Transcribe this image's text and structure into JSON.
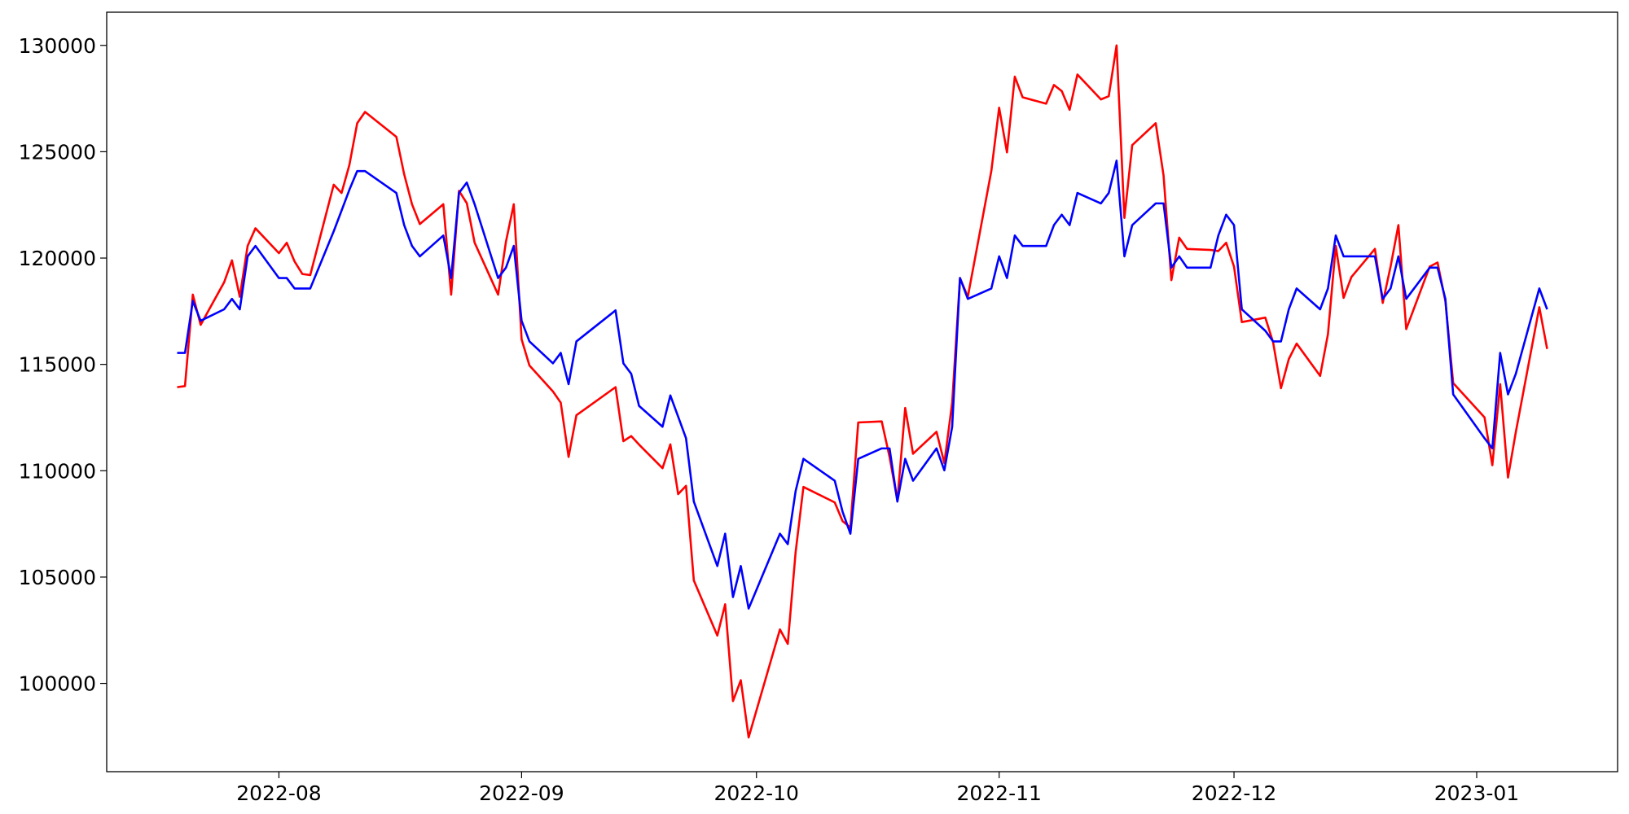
{
  "chart_data": {
    "type": "line",
    "x": [
      "2022-07-19",
      "2022-07-20",
      "2022-07-21",
      "2022-07-22",
      "2022-07-25",
      "2022-07-26",
      "2022-07-27",
      "2022-07-28",
      "2022-07-29",
      "2022-08-01",
      "2022-08-02",
      "2022-08-03",
      "2022-08-04",
      "2022-08-05",
      "2022-08-08",
      "2022-08-09",
      "2022-08-10",
      "2022-08-11",
      "2022-08-12",
      "2022-08-16",
      "2022-08-17",
      "2022-08-18",
      "2022-08-19",
      "2022-08-22",
      "2022-08-23",
      "2022-08-24",
      "2022-08-25",
      "2022-08-26",
      "2022-08-29",
      "2022-08-30",
      "2022-08-31",
      "2022-09-01",
      "2022-09-02",
      "2022-09-05",
      "2022-09-06",
      "2022-09-07",
      "2022-09-08",
      "2022-09-13",
      "2022-09-14",
      "2022-09-15",
      "2022-09-16",
      "2022-09-19",
      "2022-09-20",
      "2022-09-21",
      "2022-09-22",
      "2022-09-23",
      "2022-09-26",
      "2022-09-27",
      "2022-09-28",
      "2022-09-29",
      "2022-09-30",
      "2022-10-04",
      "2022-10-05",
      "2022-10-06",
      "2022-10-07",
      "2022-10-11",
      "2022-10-12",
      "2022-10-13",
      "2022-10-14",
      "2022-10-17",
      "2022-10-18",
      "2022-10-19",
      "2022-10-20",
      "2022-10-21",
      "2022-10-24",
      "2022-10-25",
      "2022-10-26",
      "2022-10-27",
      "2022-10-28",
      "2022-10-31",
      "2022-11-01",
      "2022-11-02",
      "2022-11-03",
      "2022-11-04",
      "2022-11-07",
      "2022-11-08",
      "2022-11-09",
      "2022-11-10",
      "2022-11-11",
      "2022-11-14",
      "2022-11-15",
      "2022-11-16",
      "2022-11-17",
      "2022-11-18",
      "2022-11-21",
      "2022-11-22",
      "2022-11-23",
      "2022-11-24",
      "2022-11-25",
      "2022-11-28",
      "2022-11-29",
      "2022-11-30",
      "2022-12-01",
      "2022-12-02",
      "2022-12-05",
      "2022-12-06",
      "2022-12-07",
      "2022-12-08",
      "2022-12-09",
      "2022-12-12",
      "2022-12-13",
      "2022-12-14",
      "2022-12-15",
      "2022-12-16",
      "2022-12-19",
      "2022-12-20",
      "2022-12-21",
      "2022-12-22",
      "2022-12-23",
      "2022-12-26",
      "2022-12-27",
      "2022-12-28",
      "2022-12-29",
      "2023-01-02",
      "2023-01-03",
      "2023-01-04",
      "2023-01-05",
      "2023-01-06",
      "2023-01-09",
      "2023-01-10"
    ],
    "series": [
      {
        "color": "#ff0000",
        "values": [
          113930,
          113980,
          118280,
          116860,
          118860,
          119890,
          118180,
          120570,
          121400,
          120230,
          120720,
          119840,
          119250,
          119200,
          123450,
          123060,
          124380,
          126340,
          126870,
          125700,
          123940,
          122530,
          121600,
          122530,
          118280,
          123160,
          122580,
          120720,
          118280,
          120770,
          122530,
          116180,
          114950,
          113730,
          113200,
          110650,
          112610,
          113930,
          111390,
          111630,
          111230,
          110120,
          111240,
          108900,
          109290,
          104840,
          102250,
          103720,
          99170,
          100150,
          97460,
          102540,
          101860,
          106160,
          109240,
          108510,
          107630,
          107330,
          112270,
          112320,
          110650,
          108600,
          112950,
          110800,
          111830,
          110360,
          113200,
          119060,
          118180,
          124090,
          127070,
          124970,
          128530,
          127560,
          127260,
          128140,
          127850,
          126970,
          128630,
          127460,
          127610,
          130000,
          121890,
          125310,
          126340,
          123890,
          118960,
          120960,
          120430,
          120380,
          120330,
          120720,
          119600,
          116990,
          117200,
          116030,
          113880,
          115250,
          115980,
          114460,
          116420,
          120570,
          118130,
          119110,
          120430,
          117890,
          119600,
          121550,
          116660,
          119600,
          119790,
          117980,
          114120,
          112510,
          110260,
          114070,
          109680,
          111820,
          117690,
          115730
        ]
      },
      {
        "color": "#0000ff",
        "values": [
          115540,
          115540,
          117980,
          117050,
          117590,
          118080,
          117590,
          120080,
          120570,
          119060,
          119060,
          118570,
          118570,
          118570,
          121260,
          122230,
          123210,
          124090,
          124090,
          123060,
          121550,
          120570,
          120080,
          121060,
          119060,
          123060,
          123550,
          122530,
          119060,
          119550,
          120570,
          117050,
          116080,
          115050,
          115540,
          114070,
          116080,
          117540,
          115050,
          114560,
          113050,
          112070,
          113540,
          112540,
          111530,
          108550,
          105520,
          107040,
          104060,
          105520,
          103520,
          107040,
          106550,
          109040,
          110560,
          109530,
          108070,
          107040,
          110560,
          111050,
          111050,
          108550,
          110560,
          109530,
          111050,
          110020,
          112070,
          119060,
          118080,
          118570,
          120080,
          119060,
          121060,
          120570,
          120570,
          121550,
          122040,
          121550,
          123060,
          122570,
          123060,
          124580,
          120080,
          121550,
          122570,
          122570,
          119550,
          120080,
          119550,
          119550,
          121060,
          122040,
          121550,
          117590,
          116580,
          116080,
          116080,
          117590,
          118570,
          117590,
          118570,
          121060,
          120080,
          120080,
          120080,
          118080,
          118570,
          120080,
          118080,
          119550,
          119550,
          118080,
          113590,
          111530,
          111050,
          115540,
          113590,
          114560,
          118570,
          117590
        ]
      }
    ],
    "xlim": [
      "2022-07-10",
      "2023-01-19"
    ],
    "xticks": [
      {
        "value": "2022-08-01",
        "label": "2022-08"
      },
      {
        "value": "2022-09-01",
        "label": "2022-09"
      },
      {
        "value": "2022-10-01",
        "label": "2022-10"
      },
      {
        "value": "2022-11-01",
        "label": "2022-11"
      },
      {
        "value": "2022-12-01",
        "label": "2022-12"
      },
      {
        "value": "2023-01-01",
        "label": "2023-01"
      }
    ],
    "ylim": [
      95850,
      131560
    ],
    "yticks": [
      100000,
      105000,
      110000,
      115000,
      120000,
      125000,
      130000
    ],
    "grid": false
  }
}
